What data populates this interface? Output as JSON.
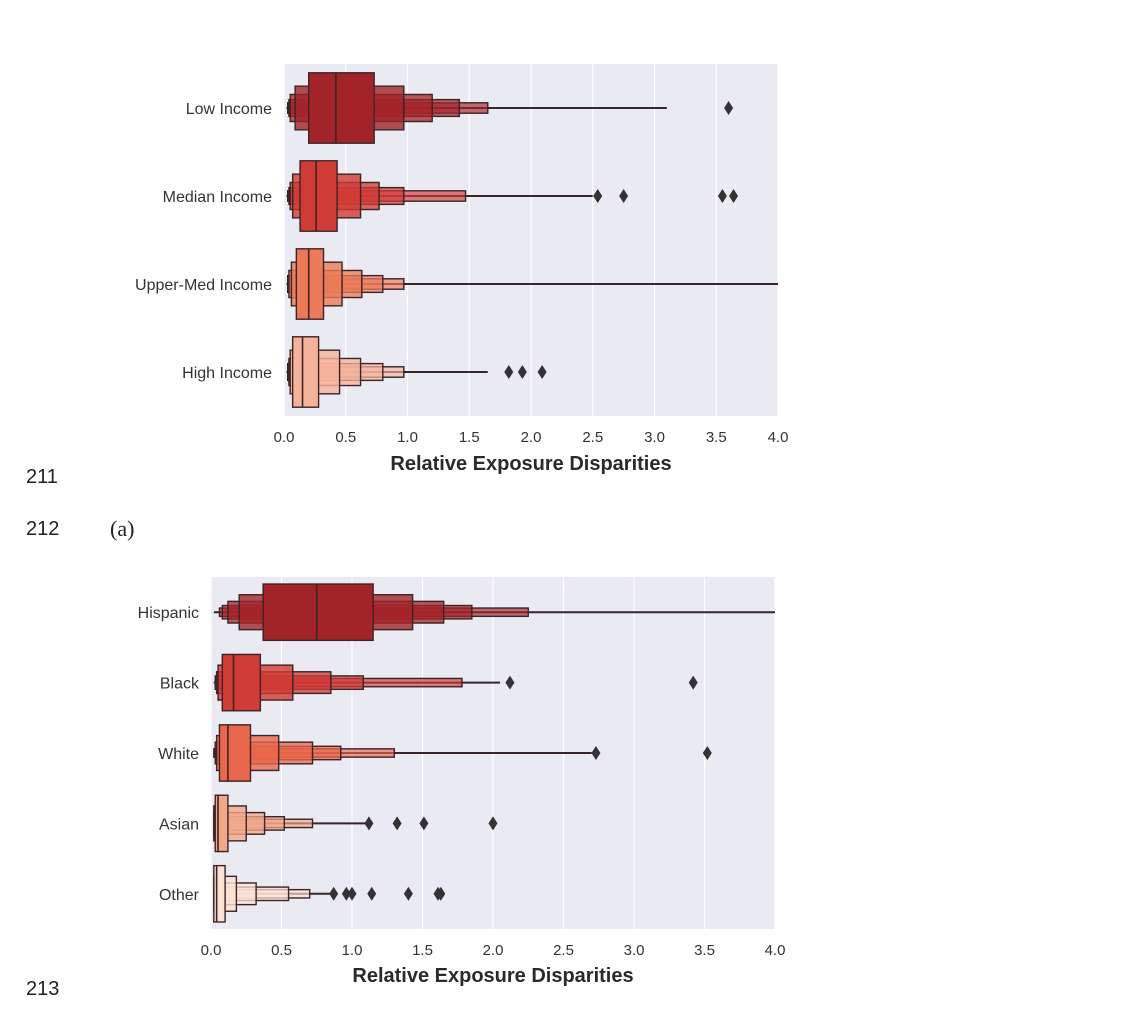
{
  "line_numbers": [
    "211",
    "212",
    "213"
  ],
  "caption_a": "(a)",
  "colors": {
    "plot_background": "#eaeaf2",
    "grid": "#ffffff",
    "edge": "#3b2326",
    "outlier": "#333333"
  },
  "chart_data": [
    {
      "type": "boxen",
      "orientation": "horizontal",
      "title": "",
      "xlabel": "Relative Exposure Disparities",
      "ylabel": "",
      "xlim": [
        0,
        4
      ],
      "xticks": [
        "0.0",
        "0.5",
        "1.0",
        "1.5",
        "2.0",
        "2.5",
        "3.0",
        "3.5",
        "4.0"
      ],
      "grid": true,
      "categories": [
        "Low Income",
        "Median Income",
        "Upper-Med Income",
        "High Income"
      ],
      "series": [
        {
          "median": 0.42,
          "color": "#a32428",
          "levels": [
            [
              0.2,
              0.73
            ],
            [
              0.09,
              0.97
            ],
            [
              0.05,
              1.2
            ],
            [
              0.04,
              1.42
            ],
            [
              0.03,
              1.65
            ]
          ],
          "whisker": [
            0.02,
            3.1
          ],
          "outliers": [
            3.6
          ]
        },
        {
          "median": 0.26,
          "color": "#cf3b35",
          "levels": [
            [
              0.13,
              0.43
            ],
            [
              0.07,
              0.62
            ],
            [
              0.05,
              0.77
            ],
            [
              0.04,
              0.97
            ],
            [
              0.03,
              1.47
            ]
          ],
          "whisker": [
            0.02,
            2.5
          ],
          "outliers": [
            2.54,
            2.75,
            3.55,
            3.64
          ]
        },
        {
          "median": 0.2,
          "color": "#ec7a58",
          "levels": [
            [
              0.1,
              0.32
            ],
            [
              0.06,
              0.47
            ],
            [
              0.04,
              0.63
            ],
            [
              0.03,
              0.8
            ],
            [
              0.03,
              0.97
            ]
          ],
          "whisker": [
            0.02,
            4.0
          ],
          "outliers": []
        },
        {
          "median": 0.15,
          "color": "#f6b39c",
          "levels": [
            [
              0.07,
              0.28
            ],
            [
              0.05,
              0.45
            ],
            [
              0.04,
              0.62
            ],
            [
              0.03,
              0.8
            ],
            [
              0.03,
              0.97
            ]
          ],
          "whisker": [
            0.02,
            1.65
          ],
          "outliers": [
            1.82,
            1.93,
            2.09
          ]
        }
      ]
    },
    {
      "type": "boxen",
      "orientation": "horizontal",
      "title": "",
      "xlabel": "Relative Exposure Disparities",
      "ylabel": "",
      "xlim": [
        0,
        4
      ],
      "xticks": [
        "0.0",
        "0.5",
        "1.0",
        "1.5",
        "2.0",
        "2.5",
        "3.0",
        "3.5",
        "4.0"
      ],
      "grid": true,
      "categories": [
        "Hispanic",
        "Black",
        "White",
        "Asian",
        "Other"
      ],
      "series": [
        {
          "median": 0.75,
          "color": "#a32428",
          "levels": [
            [
              0.37,
              1.15
            ],
            [
              0.2,
              1.43
            ],
            [
              0.12,
              1.65
            ],
            [
              0.08,
              1.85
            ],
            [
              0.06,
              2.25
            ]
          ],
          "whisker": [
            0.02,
            4.0
          ],
          "outliers": []
        },
        {
          "median": 0.16,
          "color": "#cf3b35",
          "levels": [
            [
              0.08,
              0.35
            ],
            [
              0.05,
              0.58
            ],
            [
              0.04,
              0.85
            ],
            [
              0.03,
              1.08
            ],
            [
              0.03,
              1.78
            ]
          ],
          "whisker": [
            0.02,
            2.05
          ],
          "outliers": [
            2.12,
            3.42
          ]
        },
        {
          "median": 0.12,
          "color": "#e9674c",
          "levels": [
            [
              0.06,
              0.28
            ],
            [
              0.04,
              0.48
            ],
            [
              0.03,
              0.72
            ],
            [
              0.03,
              0.92
            ],
            [
              0.02,
              1.3
            ]
          ],
          "whisker": [
            0.02,
            2.7
          ],
          "outliers": [
            2.73,
            3.52
          ]
        },
        {
          "median": 0.05,
          "color": "#f3a88a",
          "levels": [
            [
              0.03,
              0.12
            ],
            [
              0.02,
              0.25
            ],
            [
              0.02,
              0.38
            ],
            [
              0.02,
              0.52
            ],
            [
              0.02,
              0.72
            ]
          ],
          "whisker": [
            0.02,
            1.12
          ],
          "outliers": [
            1.12,
            1.32,
            1.51,
            2.0
          ]
        },
        {
          "median": 0.04,
          "color": "#fde3d3",
          "levels": [
            [
              0.02,
              0.1
            ],
            [
              0.02,
              0.18
            ],
            [
              0.02,
              0.32
            ],
            [
              0.02,
              0.55
            ],
            [
              0.02,
              0.7
            ]
          ],
          "whisker": [
            0.02,
            0.85
          ],
          "outliers": [
            0.87,
            0.96,
            1.0,
            1.14,
            1.4,
            1.61,
            1.63
          ]
        }
      ]
    }
  ]
}
